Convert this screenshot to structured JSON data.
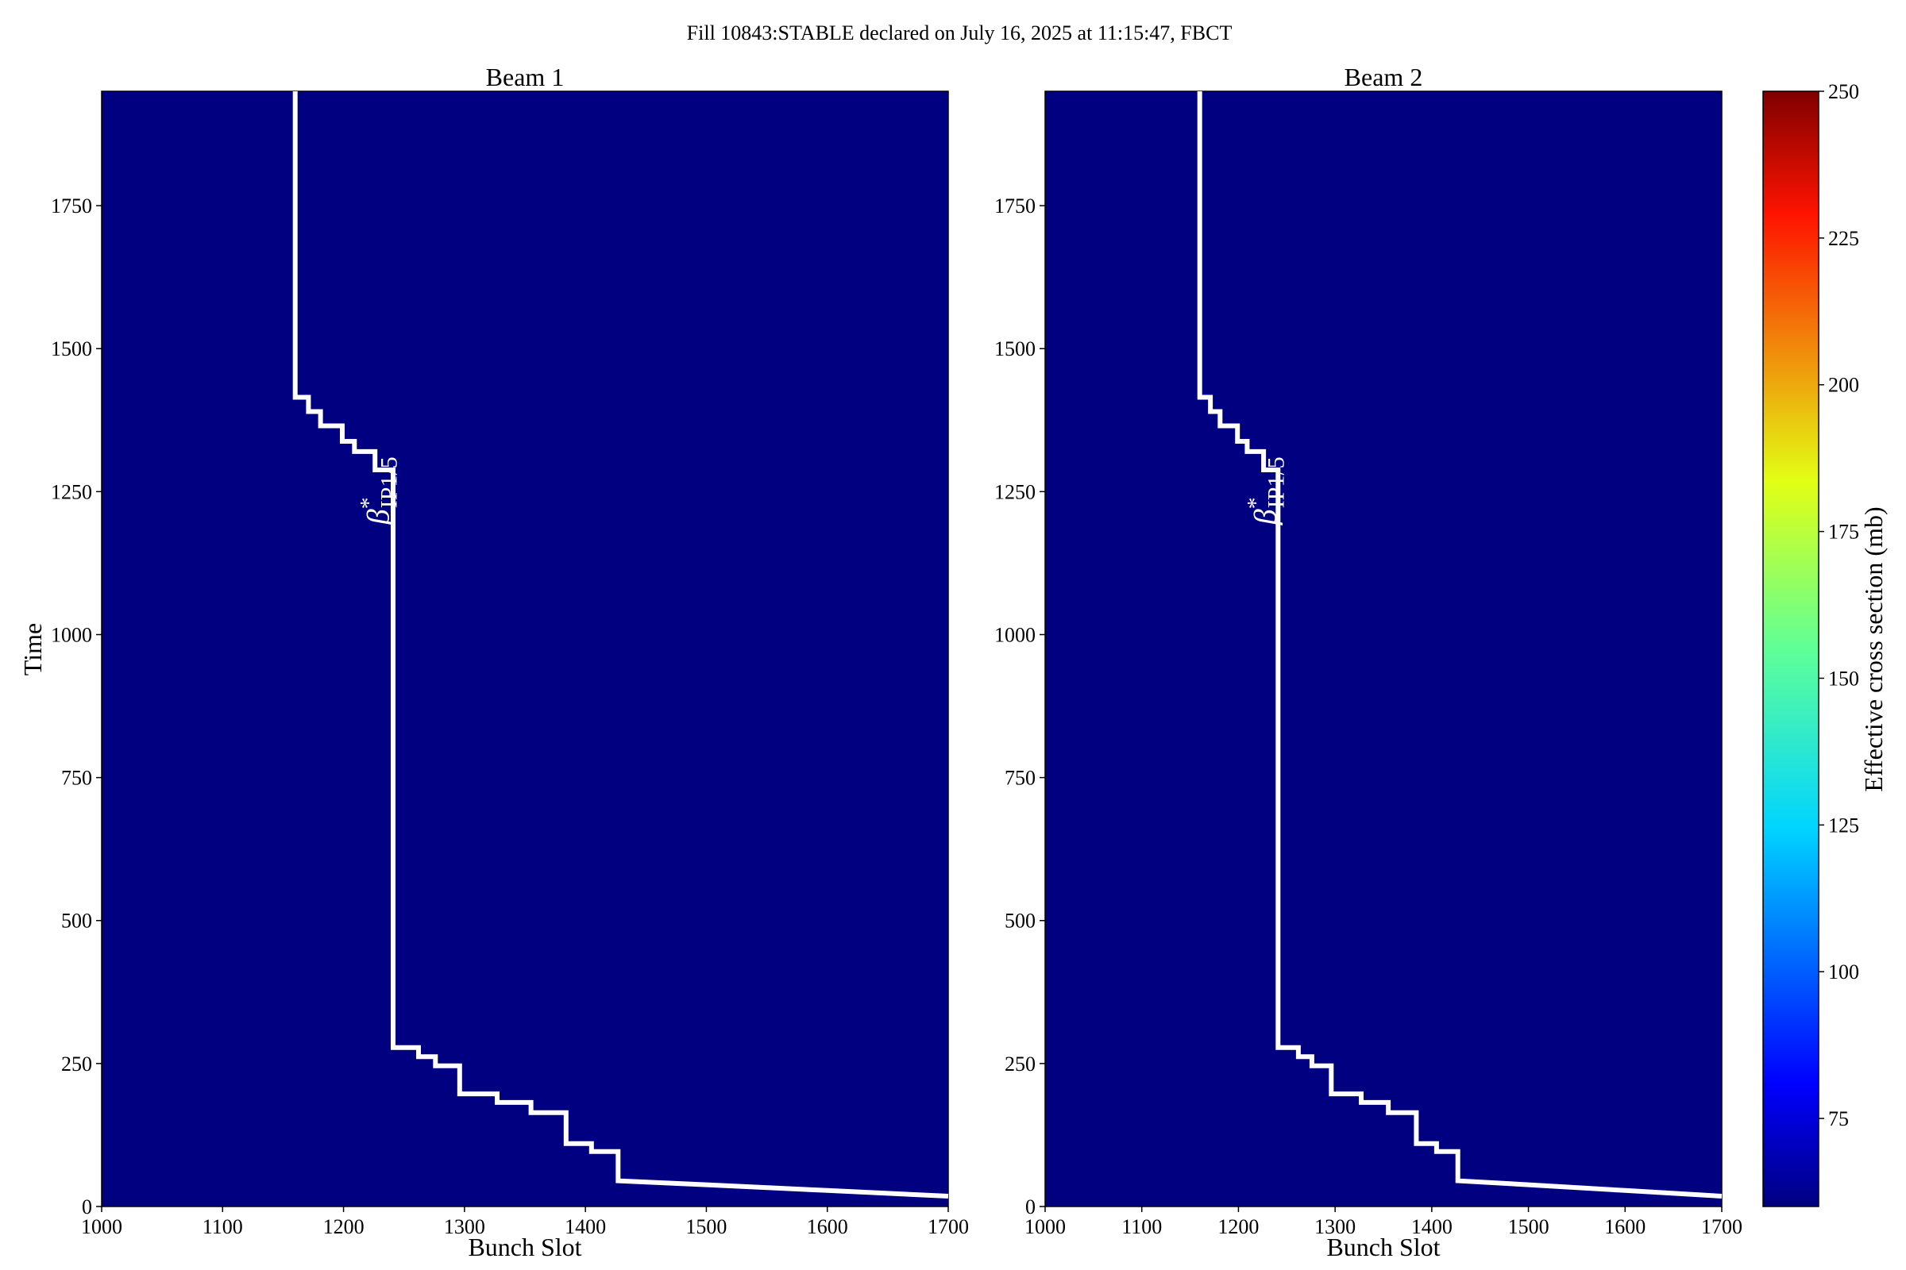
{
  "chart_data": {
    "suptitle": "Fill 10843:STABLE declared on July 16, 2025 at 11:15:47, FBCT",
    "type": "heatmap",
    "background_color": "#000080",
    "line_color": "#ffffff",
    "xlim": [
      1000,
      1700
    ],
    "ylim": [
      0,
      1950
    ],
    "xticks": [
      1000,
      1100,
      1200,
      1300,
      1400,
      1500,
      1600,
      1700
    ],
    "yticks": [
      0,
      250,
      500,
      750,
      1000,
      1250,
      1500,
      1750
    ],
    "xlabel": "Bunch Slot",
    "ylabel": "Time",
    "colorbar": {
      "label": "Effective cross section (mb)",
      "range": [
        60,
        250
      ],
      "ticks": [
        75,
        100,
        125,
        150,
        175,
        200,
        225,
        250
      ],
      "colormap": "jet"
    },
    "annotation": {
      "symbol": "β",
      "superscript": "*",
      "subscript": "IP1/5",
      "x": 1232,
      "y": 1400
    },
    "panels": [
      {
        "title": "Beam 1",
        "series": [
          {
            "x": [
              1160,
              1160,
              1171,
              1171,
              1181,
              1181,
              1199,
              1199,
              1209,
              1209,
              1226,
              1226,
              1241,
              1241,
              1262,
              1262,
              1276,
              1276,
              1296,
              1296,
              1327,
              1327,
              1355,
              1355,
              1384,
              1384,
              1405,
              1405,
              1427,
              1427,
              1500,
              1600,
              1700
            ],
            "y": [
              1950,
              1415,
              1415,
              1390,
              1390,
              1365,
              1365,
              1338,
              1338,
              1320,
              1320,
              1288,
              1288,
              278,
              278,
              262,
              262,
              246,
              246,
              197,
              197,
              182,
              182,
              164,
              164,
              110,
              110,
              96,
              96,
              45,
              38,
              28,
              18
            ]
          }
        ]
      },
      {
        "title": "Beam 2",
        "series": [
          {
            "x": [
              1160,
              1160,
              1171,
              1171,
              1181,
              1181,
              1199,
              1199,
              1209,
              1209,
              1226,
              1226,
              1241,
              1241,
              1262,
              1262,
              1276,
              1276,
              1296,
              1296,
              1327,
              1327,
              1355,
              1355,
              1384,
              1384,
              1405,
              1405,
              1427,
              1427,
              1500,
              1600,
              1700
            ],
            "y": [
              1950,
              1415,
              1415,
              1390,
              1390,
              1365,
              1365,
              1338,
              1338,
              1320,
              1320,
              1288,
              1288,
              278,
              278,
              262,
              262,
              246,
              246,
              197,
              197,
              182,
              182,
              164,
              164,
              110,
              110,
              96,
              96,
              45,
              38,
              28,
              18
            ]
          }
        ]
      }
    ]
  }
}
